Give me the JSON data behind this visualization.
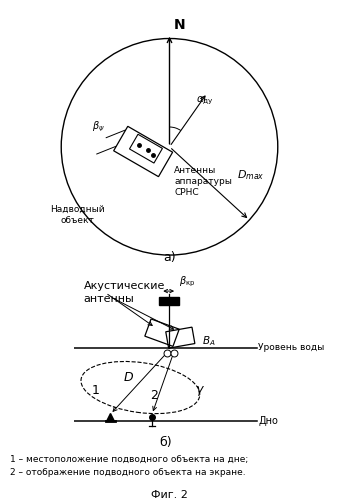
{
  "fig_width": 3.39,
  "fig_height": 4.99,
  "bg_color": "#ffffff",
  "line_color": "#000000",
  "label_a": "а)",
  "label_b": "б)",
  "fig_label": "Фиг. 2",
  "caption1": "1 – местоположение подводного объекта на дне;",
  "caption2": "2 – отображение подводного объекта на экране.",
  "north_label": "N",
  "antenna_label": "Антенны\nаппаратуры\nСРНС",
  "surface_label": "Надводный\nобъект",
  "acoustic_label": "Акустические\nантенны",
  "water_level_label": "Уровень воды",
  "bottom_label": "Дно"
}
